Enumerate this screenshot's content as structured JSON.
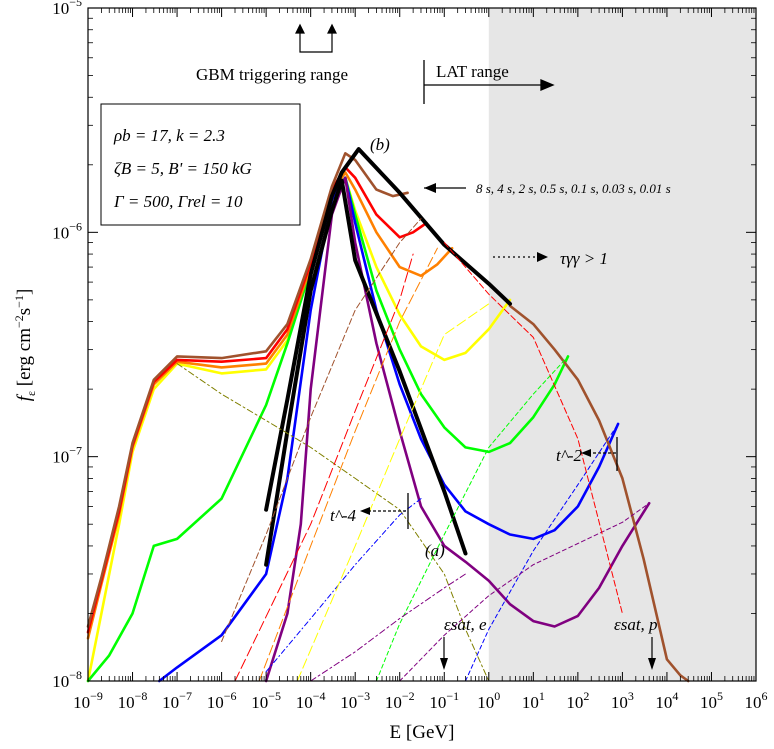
{
  "chart_data": {
    "type": "line",
    "title": "",
    "xlabel": "E [GeV]",
    "ylabel": "f_ε [erg cm^-2 s^-1]",
    "xscale": "log",
    "yscale": "log",
    "xlim": [
      1e-09,
      1000000.0
    ],
    "ylim": [
      1e-08,
      1e-05
    ],
    "grid": false,
    "legend": "none",
    "shaded_region": {
      "x_from": 1,
      "x_to": 1000000.0,
      "color": "#e6e6e6"
    },
    "x_tick_labels": [
      "10^-9",
      "10^-8",
      "10^-7",
      "10^-6",
      "10^-5",
      "10^-4",
      "10^-3",
      "10^-2",
      "10^-1",
      "10^0",
      "10^1",
      "10^2",
      "10^3",
      "10^4",
      "10^5",
      "10^6"
    ],
    "y_tick_labels": [
      "10^-8",
      "10^-7",
      "10^-6",
      "10^-5"
    ],
    "params_box": {
      "line1": "ρb = 17,  k = 2.3",
      "line2": "ζB = 5,  B' = 150 kG",
      "line3": "Γ = 500,  Γrel = 10"
    },
    "annotations": {
      "gbm": "GBM triggering range",
      "lat": "LAT range",
      "times": "8 s,  4 s,  2 s,  0.5 s,  0.1 s,  0.03 s,  0.01 s",
      "tau": "τγγ > 1",
      "label_a": "(a)",
      "label_b": "(b)",
      "t_minus4": "t^-4",
      "t_minus2": "t^-2",
      "eps_sat_e": "εsat, e",
      "eps_sat_p": "εsat, p"
    },
    "series": [
      {
        "color": "#ffff00",
        "x": [
          1e-09,
          2e-09,
          5e-09,
          1e-08,
          3e-08,
          1e-07,
          1e-06,
          1e-05,
          3e-05,
          0.0001,
          0.0003,
          0.0006,
          0.001,
          0.003,
          0.01,
          0.03,
          0.1,
          0.3,
          1,
          3
        ],
        "y": [
          1e-08,
          2e-08,
          5e-08,
          1.05e-07,
          2e-07,
          2.6e-07,
          2.35e-07,
          2.45e-07,
          3.3e-07,
          6.8e-07,
          1.45e-06,
          1.75e-06,
          1.25e-06,
          7e-07,
          4.3e-07,
          3.1e-07,
          2.7e-07,
          2.9e-07,
          3.7e-07,
          5e-07
        ]
      },
      {
        "color": "#00ff00",
        "x": [
          1e-09,
          3e-09,
          1e-08,
          3e-08,
          1e-07,
          1e-06,
          1e-05,
          3e-05,
          0.0001,
          0.0003,
          0.0006,
          0.001,
          0.003,
          0.01,
          0.03,
          0.1,
          0.3,
          1,
          3,
          10.0,
          30.0,
          60.0
        ],
        "y": [
          1e-08,
          1.3e-08,
          2e-08,
          4e-08,
          4.3e-08,
          6.5e-08,
          1.7e-07,
          3.2e-07,
          6.8e-07,
          1.45e-06,
          1.75e-06,
          1.2e-06,
          5.5e-07,
          3e-07,
          1.9e-07,
          1.35e-07,
          1.1e-07,
          1.05e-07,
          1.15e-07,
          1.5e-07,
          2.1e-07,
          2.8e-07
        ]
      },
      {
        "color": "#0000ff",
        "x": [
          4e-08,
          1e-07,
          1e-06,
          1e-05,
          3e-05,
          0.0001,
          0.0003,
          0.0006,
          0.001,
          0.003,
          0.01,
          0.03,
          0.1,
          0.3,
          1,
          3,
          10.0,
          30.0,
          100.0,
          300.0,
          800.0
        ],
        "y": [
          1e-08,
          1.15e-08,
          1.6e-08,
          3e-08,
          8e-08,
          4.5e-07,
          1.4e-06,
          1.75e-06,
          1.1e-06,
          4.5e-07,
          2.1e-07,
          1.2e-07,
          7.5e-08,
          5.7e-08,
          5e-08,
          4.5e-08,
          4.3e-08,
          4.7e-08,
          6e-08,
          9e-08,
          1.4e-07
        ]
      },
      {
        "color": "#800080",
        "x": [
          1e-05,
          3e-05,
          6e-05,
          0.0001,
          0.0003,
          0.0006,
          0.001,
          0.003,
          0.01,
          0.03,
          0.1,
          0.3,
          1,
          3,
          10.0,
          30.0,
          100.0,
          300.0,
          1000.0,
          4000.0
        ],
        "y": [
          1e-08,
          2e-08,
          5e-08,
          2e-07,
          1.2e-06,
          1.75e-06,
          9e-07,
          3.2e-07,
          1.3e-07,
          6e-08,
          4e-08,
          3.4e-08,
          2.8e-08,
          2.2e-08,
          1.85e-08,
          1.75e-08,
          1.95e-08,
          2.6e-08,
          4e-08,
          6.2e-08
        ]
      },
      {
        "color": "#ff8000",
        "x": [
          1e-09,
          2e-09,
          5e-09,
          1e-08,
          3e-08,
          1e-07,
          1e-06,
          1e-05,
          3e-05,
          0.0001,
          0.0003,
          0.0006,
          0.001,
          0.003,
          0.01,
          0.03,
          0.07,
          0.15
        ],
        "y": [
          1.55e-08,
          2.7e-08,
          5.5e-08,
          1.1e-07,
          2.1e-07,
          2.65e-07,
          2.5e-07,
          2.6e-07,
          3.5e-07,
          7e-07,
          1.5e-06,
          1.85e-06,
          1.55e-06,
          1e-06,
          7e-07,
          6.4e-07,
          7.2e-07,
          8.5e-07
        ]
      },
      {
        "color": "#ff0000",
        "x": [
          1e-09,
          2e-09,
          5e-09,
          1e-08,
          3e-08,
          1e-07,
          1e-06,
          1e-05,
          3e-05,
          0.0001,
          0.0003,
          0.0006,
          0.001,
          0.003,
          0.01,
          0.02,
          0.04
        ],
        "y": [
          1.65e-08,
          2.8e-08,
          5.7e-08,
          1.12e-07,
          2.15e-07,
          2.7e-07,
          2.65e-07,
          2.75e-07,
          3.7e-07,
          7.3e-07,
          1.55e-06,
          1.95e-06,
          1.75e-06,
          1.2e-06,
          9.5e-07,
          1e-06,
          1.1e-06
        ]
      },
      {
        "color": "#a0522d",
        "x": [
          1e-09,
          2e-09,
          5e-09,
          1e-08,
          3e-08,
          1e-07,
          1e-06,
          1e-05,
          3e-05,
          0.0001,
          0.0003,
          0.0006,
          0.001,
          0.003,
          0.007,
          0.015
        ],
        "y": [
          1.75e-08,
          2.9e-08,
          6e-08,
          1.15e-07,
          2.2e-07,
          2.8e-07,
          2.75e-07,
          2.95e-07,
          3.9e-07,
          7.6e-07,
          1.6e-06,
          2.25e-06,
          2.1e-06,
          1.55e-06,
          1.45e-06,
          1.5e-06
        ]
      },
      {
        "color": "#a0522d",
        "x": [
          3,
          10.0,
          30.0,
          100.0,
          300.0,
          1000.0,
          3000.0,
          10000.0,
          20000.0,
          30000.0
        ],
        "y": [
          4.7e-07,
          3.9e-07,
          3e-07,
          2.2e-07,
          1.45e-07,
          8e-08,
          3.5e-08,
          1.25e-08,
          1.06e-08,
          1e-08
        ]
      },
      {
        "color": "#000000",
        "width": 4,
        "x": [
          1e-05,
          3e-05,
          0.0001,
          0.0003,
          0.0005,
          0.001,
          0.01,
          0.1,
          0.3
        ],
        "y": [
          3.3e-08,
          1.3e-07,
          5.5e-07,
          1.25e-06,
          1.7e-06,
          7.5e-07,
          2.4e-07,
          7e-08,
          3.7e-08
        ]
      },
      {
        "color": "#000000",
        "width": 4,
        "x": [
          1e-05,
          3e-05,
          0.0001,
          0.0003,
          0.0005,
          0.0012,
          0.01,
          0.1,
          1,
          3
        ],
        "y": [
          5.8e-08,
          1.8e-07,
          6.5e-07,
          1.45e-06,
          1.85e-06,
          2.35e-06,
          1.5e-06,
          8.8e-07,
          5.9e-07,
          4.8e-07
        ]
      },
      {
        "color": "#808000",
        "dash": "6,3,2,3",
        "x": [
          1e-07,
          1e-06,
          1e-05,
          0.0001,
          0.001,
          0.01,
          0.1,
          0.3,
          1
        ],
        "y": [
          2.6e-07,
          1.9e-07,
          1.45e-07,
          1.1e-07,
          8e-08,
          5.8e-08,
          3e-08,
          1.7e-08,
          1e-08
        ]
      },
      {
        "color": "#0000ff",
        "dash": "5,3,1,3",
        "x": [
          1e-05,
          0.0001,
          0.001,
          0.01,
          0.03
        ],
        "y": [
          1.1e-08,
          1.9e-08,
          3.3e-08,
          5.5e-08,
          6.5e-08
        ]
      },
      {
        "color": "#ff0000",
        "dash": "10,4",
        "x": [
          2e-06,
          0.0001,
          0.001,
          0.01,
          0.02
        ],
        "y": [
          1e-08,
          5e-08,
          1.6e-07,
          5e-07,
          8e-07
        ]
      },
      {
        "color": "#ff8000",
        "dash": "10,4",
        "x": [
          7e-06,
          0.0001,
          0.001,
          0.01,
          0.07
        ],
        "y": [
          1e-08,
          4e-08,
          1.3e-07,
          4e-07,
          8.5e-07
        ]
      },
      {
        "color": "#ffff00",
        "dash": "10,4",
        "x": [
          5e-05,
          0.001,
          0.01,
          0.1,
          1
        ],
        "y": [
          1e-08,
          4e-08,
          1.2e-07,
          3.5e-07,
          4.8e-07
        ]
      },
      {
        "color": "#00ff00",
        "dash": "4,3",
        "x": [
          0.003,
          0.01,
          0.1,
          1,
          10.0,
          60.0
        ],
        "y": [
          1e-08,
          1.8e-08,
          4.5e-08,
          1.1e-07,
          1.9e-07,
          2.8e-07
        ]
      },
      {
        "color": "#0000ff",
        "dash": "4,3",
        "x": [
          0.3,
          1,
          10.0,
          100.0,
          800.0
        ],
        "y": [
          1e-08,
          1.7e-08,
          3.8e-08,
          7.5e-08,
          1.4e-07
        ]
      },
      {
        "color": "#800080",
        "dash": "4,3",
        "x": [
          0.01,
          0.1,
          1,
          10.0,
          100.0,
          1000.0,
          4000.0
        ],
        "y": [
          1e-08,
          1.6e-08,
          2.4e-08,
          3.3e-08,
          4.1e-08,
          5.1e-08,
          6.2e-08
        ]
      },
      {
        "color": "#800080",
        "dash": "6,3,2,3",
        "x": [
          0.0001,
          0.001,
          0.01,
          0.1,
          0.3
        ],
        "y": [
          1e-08,
          1.35e-08,
          1.9e-08,
          2.6e-08,
          3e-08
        ]
      },
      {
        "color": "#a0522d",
        "dash": "6,3",
        "x": [
          1e-06,
          1e-05,
          0.0001,
          0.001,
          0.01,
          0.03
        ],
        "y": [
          1.5e-08,
          4.5e-08,
          1.5e-07,
          4.5e-07,
          9e-07,
          1.15e-06
        ]
      },
      {
        "color": "#ff0000",
        "dash": "6,3",
        "x": [
          0.1,
          1,
          10.0,
          100.0,
          1000.0
        ],
        "y": [
          9e-07,
          5.3e-07,
          3.4e-07,
          1.2e-07,
          2e-08
        ]
      }
    ]
  }
}
